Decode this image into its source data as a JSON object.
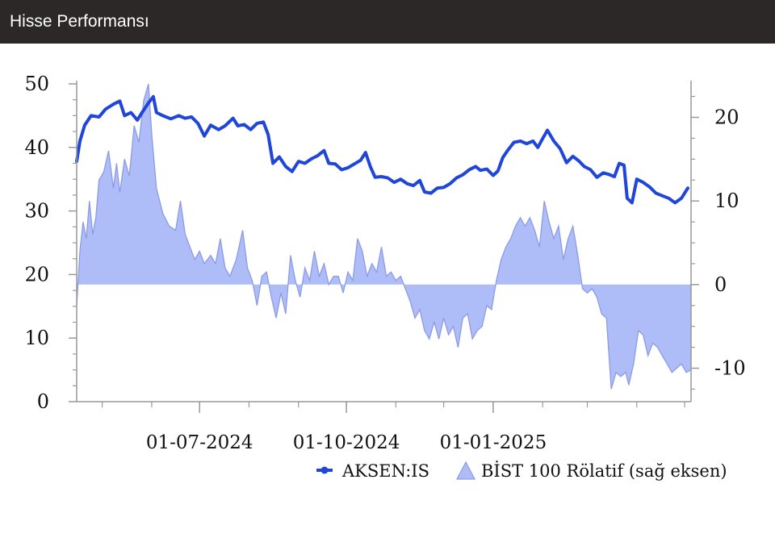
{
  "header": {
    "title": "Hisse Performansı"
  },
  "colors": {
    "header_bg": "#2b2827",
    "line": "#1f45d9",
    "area_fill": "#aebcf7",
    "area_stroke": "#8c9be6",
    "axis": "#999999"
  },
  "chart_data": {
    "type": "line",
    "x_range": [
      "2024-04-15",
      "2025-05-05"
    ],
    "left_axis": {
      "ylim": [
        0,
        50
      ],
      "ticks": [
        0,
        10,
        20,
        30,
        40,
        50
      ]
    },
    "right_axis": {
      "ylim": [
        -14,
        24
      ],
      "ticks": [
        -10,
        0,
        10,
        20
      ]
    },
    "x_ticks": [
      {
        "date": "2024-07-01",
        "label": "01-07-2024"
      },
      {
        "date": "2024-10-01",
        "label": "01-10-2024"
      },
      {
        "date": "2025-01-01",
        "label": "01-01-2025"
      }
    ],
    "legend": [
      {
        "name": "AKSEN:IS",
        "marker": "line"
      },
      {
        "name": "BİST 100 Rölatif (sağ eksen)",
        "marker": "area"
      }
    ],
    "series": [
      {
        "name": "AKSEN:IS",
        "axis": "left",
        "type": "line",
        "points": [
          [
            "2024-04-15",
            37.8
          ],
          [
            "2024-04-17",
            41.0
          ],
          [
            "2024-04-20",
            43.5
          ],
          [
            "2024-04-24",
            45.0
          ],
          [
            "2024-04-29",
            44.8
          ],
          [
            "2024-05-03",
            46.0
          ],
          [
            "2024-05-08",
            46.8
          ],
          [
            "2024-05-12",
            47.3
          ],
          [
            "2024-05-15",
            45.0
          ],
          [
            "2024-05-19",
            45.5
          ],
          [
            "2024-05-23",
            44.3
          ],
          [
            "2024-05-26",
            45.5
          ],
          [
            "2024-05-30",
            47.0
          ],
          [
            "2024-06-02",
            48.0
          ],
          [
            "2024-06-04",
            45.5
          ],
          [
            "2024-06-08",
            45.0
          ],
          [
            "2024-06-13",
            44.5
          ],
          [
            "2024-06-18",
            45.0
          ],
          [
            "2024-06-22",
            44.6
          ],
          [
            "2024-06-26",
            44.8
          ],
          [
            "2024-06-30",
            43.8
          ],
          [
            "2024-07-04",
            41.8
          ],
          [
            "2024-07-08",
            43.5
          ],
          [
            "2024-07-13",
            42.8
          ],
          [
            "2024-07-17",
            43.4
          ],
          [
            "2024-07-22",
            44.6
          ],
          [
            "2024-07-25",
            43.4
          ],
          [
            "2024-07-29",
            43.6
          ],
          [
            "2024-08-02",
            42.8
          ],
          [
            "2024-08-06",
            43.8
          ],
          [
            "2024-08-10",
            44.0
          ],
          [
            "2024-08-13",
            42.0
          ],
          [
            "2024-08-16",
            37.5
          ],
          [
            "2024-08-20",
            38.5
          ],
          [
            "2024-08-24",
            37.0
          ],
          [
            "2024-08-28",
            36.2
          ],
          [
            "2024-09-01",
            37.8
          ],
          [
            "2024-09-05",
            37.5
          ],
          [
            "2024-09-09",
            38.2
          ],
          [
            "2024-09-13",
            38.7
          ],
          [
            "2024-09-17",
            39.5
          ],
          [
            "2024-09-20",
            37.5
          ],
          [
            "2024-09-24",
            37.4
          ],
          [
            "2024-09-28",
            36.5
          ],
          [
            "2024-10-02",
            36.8
          ],
          [
            "2024-10-06",
            37.4
          ],
          [
            "2024-10-10",
            38.0
          ],
          [
            "2024-10-13",
            39.2
          ],
          [
            "2024-10-16",
            37.0
          ],
          [
            "2024-10-19",
            35.3
          ],
          [
            "2024-10-23",
            35.4
          ],
          [
            "2024-10-27",
            35.2
          ],
          [
            "2024-10-31",
            34.5
          ],
          [
            "2024-11-04",
            35.0
          ],
          [
            "2024-11-08",
            34.3
          ],
          [
            "2024-11-12",
            34.0
          ],
          [
            "2024-11-16",
            34.8
          ],
          [
            "2024-11-19",
            33.0
          ],
          [
            "2024-11-23",
            32.8
          ],
          [
            "2024-11-27",
            33.6
          ],
          [
            "2024-12-01",
            33.7
          ],
          [
            "2024-12-05",
            34.3
          ],
          [
            "2024-12-09",
            35.2
          ],
          [
            "2024-12-13",
            35.7
          ],
          [
            "2024-12-17",
            36.5
          ],
          [
            "2024-12-21",
            37.0
          ],
          [
            "2024-12-24",
            36.4
          ],
          [
            "2024-12-28",
            36.6
          ],
          [
            "2025-01-01",
            35.6
          ],
          [
            "2025-01-04",
            36.3
          ],
          [
            "2025-01-07",
            38.4
          ],
          [
            "2025-01-10",
            39.5
          ],
          [
            "2025-01-14",
            40.8
          ],
          [
            "2025-01-18",
            41.0
          ],
          [
            "2025-01-22",
            40.6
          ],
          [
            "2025-01-26",
            41.0
          ],
          [
            "2025-01-29",
            40.0
          ],
          [
            "2025-02-01",
            41.4
          ],
          [
            "2025-02-04",
            42.7
          ],
          [
            "2025-02-08",
            41.0
          ],
          [
            "2025-02-12",
            39.8
          ],
          [
            "2025-02-16",
            37.6
          ],
          [
            "2025-02-20",
            38.6
          ],
          [
            "2025-02-24",
            37.8
          ],
          [
            "2025-02-27",
            37.0
          ],
          [
            "2025-03-03",
            36.5
          ],
          [
            "2025-03-07",
            35.3
          ],
          [
            "2025-03-11",
            36.0
          ],
          [
            "2025-03-14",
            35.8
          ],
          [
            "2025-03-18",
            35.4
          ],
          [
            "2025-03-21",
            37.5
          ],
          [
            "2025-03-24",
            37.2
          ],
          [
            "2025-03-26",
            32.0
          ],
          [
            "2025-03-29",
            31.3
          ],
          [
            "2025-04-01",
            35.0
          ],
          [
            "2025-04-05",
            34.5
          ],
          [
            "2025-04-09",
            33.8
          ],
          [
            "2025-04-13",
            32.8
          ],
          [
            "2025-04-17",
            32.4
          ],
          [
            "2025-04-21",
            32.0
          ],
          [
            "2025-04-25",
            31.3
          ],
          [
            "2025-04-29",
            32.0
          ],
          [
            "2025-05-03",
            33.6
          ]
        ]
      },
      {
        "name": "BİST 100 Rölatif (sağ eksen)",
        "axis": "right",
        "type": "area",
        "points": [
          [
            "2024-04-15",
            -2.5
          ],
          [
            "2024-04-17",
            4.0
          ],
          [
            "2024-04-19",
            7.5
          ],
          [
            "2024-04-21",
            5.5
          ],
          [
            "2024-04-23",
            10.0
          ],
          [
            "2024-04-25",
            6.0
          ],
          [
            "2024-04-27",
            8.0
          ],
          [
            "2024-04-29",
            12.5
          ],
          [
            "2024-05-02",
            13.5
          ],
          [
            "2024-05-05",
            16.0
          ],
          [
            "2024-05-08",
            11.5
          ],
          [
            "2024-05-10",
            14.5
          ],
          [
            "2024-05-12",
            11.0
          ],
          [
            "2024-05-15",
            15.0
          ],
          [
            "2024-05-18",
            13.0
          ],
          [
            "2024-05-21",
            19.0
          ],
          [
            "2024-05-24",
            17.0
          ],
          [
            "2024-05-27",
            22.0
          ],
          [
            "2024-05-30",
            24.0
          ],
          [
            "2024-06-01",
            18.0
          ],
          [
            "2024-06-04",
            11.5
          ],
          [
            "2024-06-08",
            8.5
          ],
          [
            "2024-06-12",
            7.0
          ],
          [
            "2024-06-16",
            6.5
          ],
          [
            "2024-06-19",
            10.0
          ],
          [
            "2024-06-22",
            6.0
          ],
          [
            "2024-06-25",
            4.5
          ],
          [
            "2024-06-28",
            3.0
          ],
          [
            "2024-07-01",
            4.0
          ],
          [
            "2024-07-04",
            2.5
          ],
          [
            "2024-07-08",
            3.5
          ],
          [
            "2024-07-11",
            2.5
          ],
          [
            "2024-07-14",
            5.5
          ],
          [
            "2024-07-17",
            2.0
          ],
          [
            "2024-07-20",
            1.0
          ],
          [
            "2024-07-24",
            3.0
          ],
          [
            "2024-07-28",
            6.5
          ],
          [
            "2024-07-31",
            2.0
          ],
          [
            "2024-08-03",
            0.5
          ],
          [
            "2024-08-06",
            -2.5
          ],
          [
            "2024-08-09",
            1.0
          ],
          [
            "2024-08-12",
            1.5
          ],
          [
            "2024-08-15",
            -1.5
          ],
          [
            "2024-08-18",
            -4.0
          ],
          [
            "2024-08-21",
            -1.0
          ],
          [
            "2024-08-24",
            -3.5
          ],
          [
            "2024-08-27",
            3.5
          ],
          [
            "2024-08-30",
            0.5
          ],
          [
            "2024-09-02",
            -1.5
          ],
          [
            "2024-09-05",
            2.0
          ],
          [
            "2024-09-08",
            0.5
          ],
          [
            "2024-09-11",
            4.0
          ],
          [
            "2024-09-14",
            1.0
          ],
          [
            "2024-09-17",
            2.5
          ],
          [
            "2024-09-20",
            0.0
          ],
          [
            "2024-09-23",
            1.0
          ],
          [
            "2024-09-26",
            1.0
          ],
          [
            "2024-09-29",
            -1.0
          ],
          [
            "2024-10-02",
            1.5
          ],
          [
            "2024-10-05",
            0.5
          ],
          [
            "2024-10-08",
            5.5
          ],
          [
            "2024-10-11",
            4.0
          ],
          [
            "2024-10-14",
            1.0
          ],
          [
            "2024-10-17",
            2.5
          ],
          [
            "2024-10-20",
            1.5
          ],
          [
            "2024-10-23",
            4.5
          ],
          [
            "2024-10-26",
            1.0
          ],
          [
            "2024-10-29",
            1.5
          ],
          [
            "2024-11-01",
            0.5
          ],
          [
            "2024-11-04",
            1.0
          ],
          [
            "2024-11-07",
            -0.5
          ],
          [
            "2024-11-10",
            -2.0
          ],
          [
            "2024-11-13",
            -4.0
          ],
          [
            "2024-11-16",
            -3.0
          ],
          [
            "2024-11-19",
            -5.5
          ],
          [
            "2024-11-22",
            -6.5
          ],
          [
            "2024-11-25",
            -4.5
          ],
          [
            "2024-11-28",
            -6.5
          ],
          [
            "2024-12-01",
            -4.0
          ],
          [
            "2024-12-04",
            -6.0
          ],
          [
            "2024-12-07",
            -5.0
          ],
          [
            "2024-12-10",
            -7.5
          ],
          [
            "2024-12-13",
            -4.0
          ],
          [
            "2024-12-16",
            -3.5
          ],
          [
            "2024-12-19",
            -6.5
          ],
          [
            "2024-12-22",
            -5.5
          ],
          [
            "2024-12-25",
            -5.0
          ],
          [
            "2024-12-28",
            -2.5
          ],
          [
            "2024-12-31",
            -3.0
          ],
          [
            "2025-01-03",
            0.5
          ],
          [
            "2025-01-06",
            3.0
          ],
          [
            "2025-01-09",
            4.5
          ],
          [
            "2025-01-12",
            5.5
          ],
          [
            "2025-01-15",
            7.0
          ],
          [
            "2025-01-18",
            8.0
          ],
          [
            "2025-01-21",
            7.0
          ],
          [
            "2025-01-24",
            8.0
          ],
          [
            "2025-01-27",
            6.5
          ],
          [
            "2025-01-30",
            4.5
          ],
          [
            "2025-02-02",
            10.0
          ],
          [
            "2025-02-05",
            7.5
          ],
          [
            "2025-02-08",
            5.5
          ],
          [
            "2025-02-11",
            7.0
          ],
          [
            "2025-02-14",
            3.0
          ],
          [
            "2025-02-17",
            5.5
          ],
          [
            "2025-02-20",
            7.0
          ],
          [
            "2025-02-23",
            3.5
          ],
          [
            "2025-02-26",
            -0.5
          ],
          [
            "2025-03-01",
            -1.0
          ],
          [
            "2025-03-04",
            -0.5
          ],
          [
            "2025-03-07",
            -1.5
          ],
          [
            "2025-03-10",
            -3.5
          ],
          [
            "2025-03-13",
            -4.0
          ],
          [
            "2025-03-16",
            -12.5
          ],
          [
            "2025-03-19",
            -10.5
          ],
          [
            "2025-03-22",
            -11.0
          ],
          [
            "2025-03-25",
            -10.5
          ],
          [
            "2025-03-27",
            -12.0
          ],
          [
            "2025-03-30",
            -9.5
          ],
          [
            "2025-04-02",
            -5.5
          ],
          [
            "2025-04-05",
            -6.0
          ],
          [
            "2025-04-08",
            -8.5
          ],
          [
            "2025-04-11",
            -7.0
          ],
          [
            "2025-04-14",
            -7.5
          ],
          [
            "2025-04-17",
            -8.5
          ],
          [
            "2025-04-20",
            -9.5
          ],
          [
            "2025-04-23",
            -10.5
          ],
          [
            "2025-04-26",
            -10.0
          ],
          [
            "2025-04-29",
            -9.5
          ],
          [
            "2025-05-02",
            -10.5
          ],
          [
            "2025-05-05",
            -10.2
          ]
        ]
      }
    ]
  }
}
